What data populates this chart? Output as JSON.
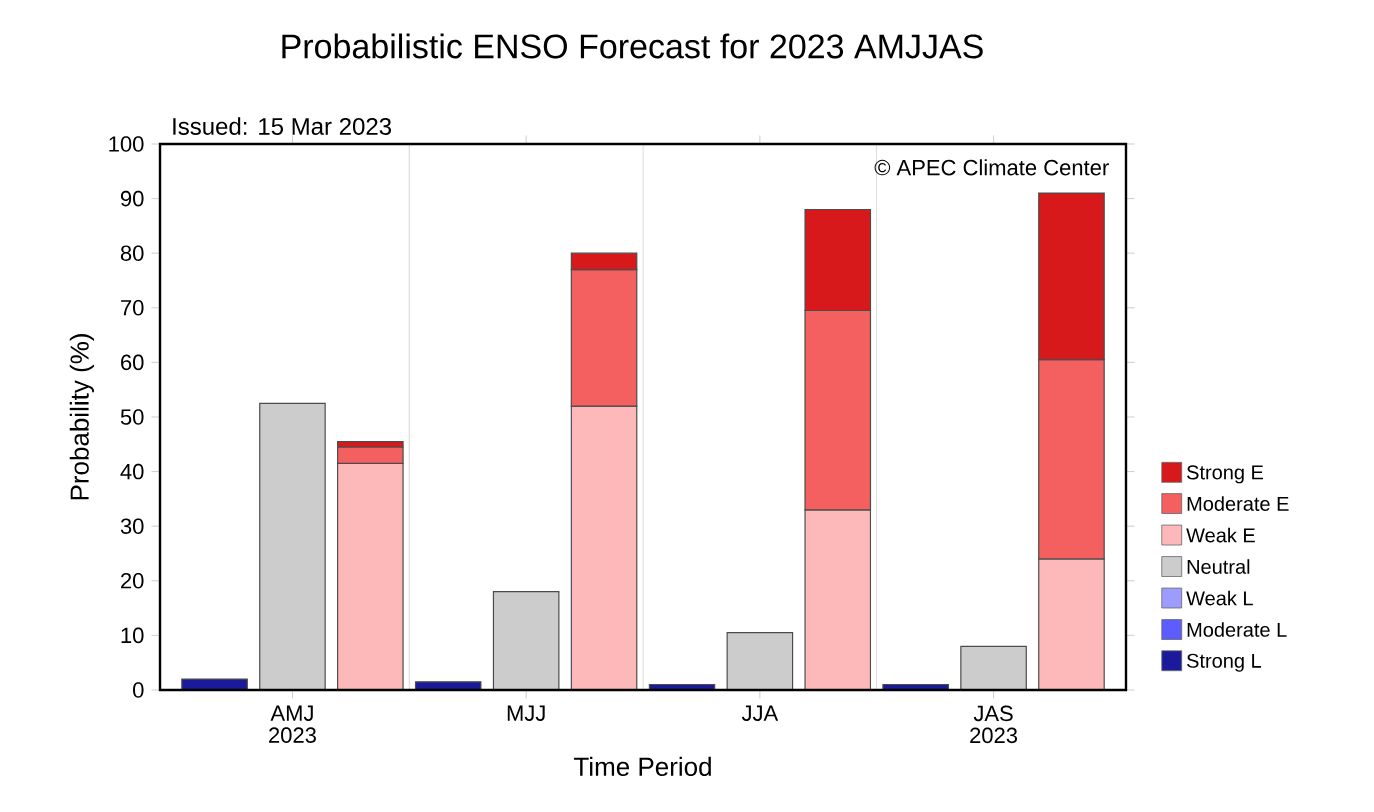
{
  "chart_data": {
    "type": "bar",
    "title": "Probabilistic ENSO Forecast for 2023 AMJJAS",
    "xlabel": "Time Period",
    "ylabel": "Probability (%)",
    "annotations": [
      "Issued: 15 Mar 2023",
      "© APEC Climate Center"
    ],
    "stacked": true,
    "legend": "right",
    "grid": false,
    "categories": [
      null,
      "AMJ 2023",
      null,
      null,
      "MJJ",
      null,
      null,
      "JJA",
      null,
      null,
      "JAS 2023",
      null
    ],
    "ylim": [
      0,
      100
    ],
    "yticks": [
      0,
      10,
      20,
      30,
      40,
      50,
      60,
      70,
      80,
      90,
      100
    ],
    "series": [
      {
        "name": "Strong L",
        "color": "#1a1a9a",
        "values": [
          2,
          null,
          null,
          1.5,
          null,
          null,
          1,
          null,
          null,
          1,
          null,
          null
        ]
      },
      {
        "name": "Moderate L",
        "color": "#5c5cff",
        "values": [
          null,
          null,
          null,
          null,
          null,
          null,
          null,
          null,
          null,
          null,
          null,
          null
        ]
      },
      {
        "name": "Weak L",
        "color": "#9c9cff",
        "values": [
          null,
          null,
          null,
          null,
          null,
          null,
          null,
          null,
          null,
          null,
          null,
          null
        ]
      },
      {
        "name": "Neutral",
        "color": "#cccccc",
        "values": [
          null,
          52.5,
          null,
          null,
          18,
          null,
          null,
          10.5,
          null,
          null,
          8,
          null
        ]
      },
      {
        "name": "Weak E",
        "color": "#fdb9b9",
        "values": [
          null,
          null,
          41.5,
          null,
          null,
          52,
          null,
          null,
          33,
          null,
          null,
          24
        ]
      },
      {
        "name": "Moderate E",
        "color": "#f45f5f",
        "values": [
          null,
          null,
          3,
          null,
          null,
          25,
          null,
          null,
          36.5,
          null,
          null,
          36.5
        ]
      },
      {
        "name": "Strong E",
        "color": "#d7191c",
        "values": [
          null,
          null,
          1,
          null,
          null,
          3,
          null,
          null,
          18.5,
          null,
          null,
          30.5
        ]
      }
    ]
  }
}
